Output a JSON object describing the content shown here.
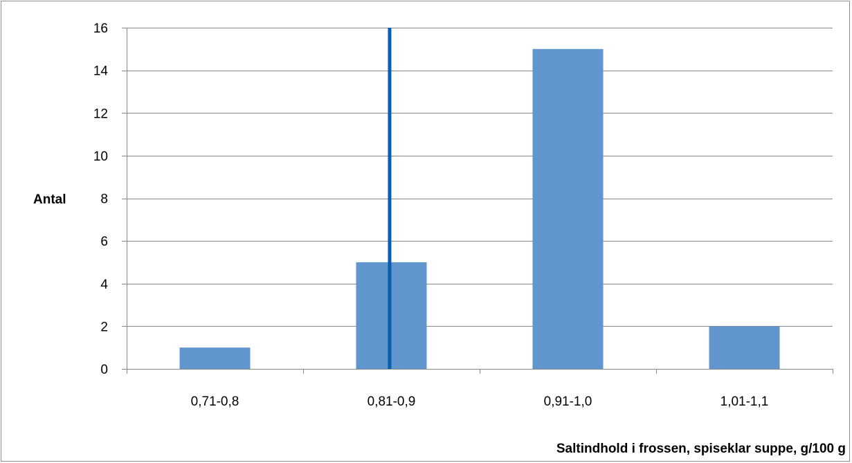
{
  "chart_data": {
    "type": "bar",
    "categories": [
      "0,71-0,8",
      "0,81-0,9",
      "0,91-1,0",
      "1,01-1,1"
    ],
    "series": [
      {
        "values": [
          1,
          5,
          15,
          2
        ]
      }
    ],
    "title": "",
    "xlabel": "Saltindhold i frossen, spiseklar suppe, g/100 g",
    "ylabel": "Antal",
    "ylim": [
      0,
      16
    ],
    "yticks": [
      "0",
      "2",
      "4",
      "6",
      "8",
      "10",
      "12",
      "14",
      "16"
    ],
    "grid": true,
    "legend": "none",
    "reference_line": {
      "x": 0.99,
      "color": "#0a5db0"
    },
    "colors": {
      "bar": "#6096cd",
      "grid": "#868686",
      "axis": "#868686"
    }
  }
}
